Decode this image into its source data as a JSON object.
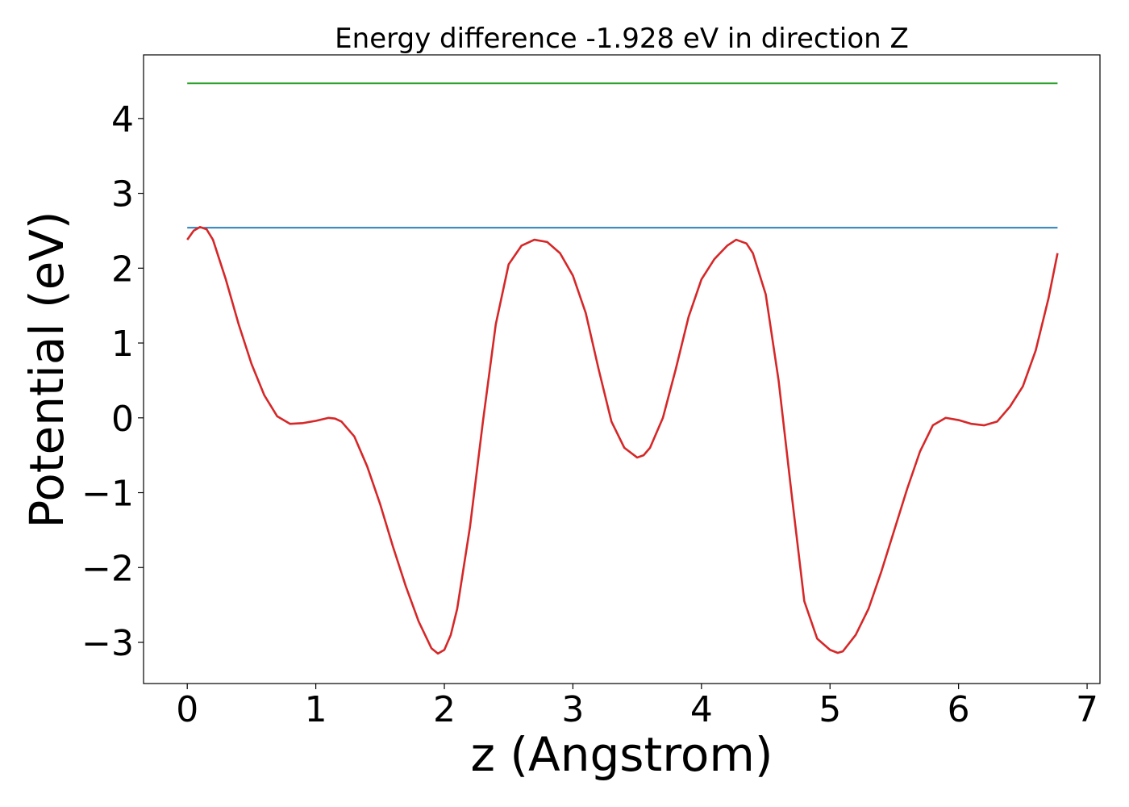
{
  "chart_data": {
    "type": "line",
    "title": "Energy difference -1.928 eV in direction Z",
    "xlabel": "z (Angstrom)",
    "ylabel": "Potential (eV)",
    "xlim": [
      -0.34,
      7.1
    ],
    "ylim": [
      -3.55,
      4.85
    ],
    "x_ticks": [
      0,
      1,
      2,
      3,
      4,
      5,
      6,
      7
    ],
    "x_tick_labels": [
      "0",
      "1",
      "2",
      "3",
      "4",
      "5",
      "6",
      "7"
    ],
    "y_ticks": [
      -3,
      -2,
      -1,
      0,
      1,
      2,
      3,
      4
    ],
    "y_tick_labels": [
      "−3",
      "−2",
      "−1",
      "0",
      "1",
      "2",
      "3",
      "4"
    ],
    "grid": false,
    "series": [
      {
        "color": "#d62728",
        "points": [
          [
            0.0,
            2.38
          ],
          [
            0.05,
            2.5
          ],
          [
            0.1,
            2.55
          ],
          [
            0.15,
            2.52
          ],
          [
            0.2,
            2.38
          ],
          [
            0.3,
            1.85
          ],
          [
            0.4,
            1.25
          ],
          [
            0.5,
            0.72
          ],
          [
            0.6,
            0.3
          ],
          [
            0.7,
            0.02
          ],
          [
            0.8,
            -0.08
          ],
          [
            0.9,
            -0.07
          ],
          [
            1.0,
            -0.04
          ],
          [
            1.1,
            0.0
          ],
          [
            1.15,
            -0.01
          ],
          [
            1.2,
            -0.05
          ],
          [
            1.3,
            -0.25
          ],
          [
            1.4,
            -0.65
          ],
          [
            1.5,
            -1.15
          ],
          [
            1.6,
            -1.72
          ],
          [
            1.7,
            -2.25
          ],
          [
            1.8,
            -2.72
          ],
          [
            1.9,
            -3.08
          ],
          [
            1.95,
            -3.15
          ],
          [
            2.0,
            -3.1
          ],
          [
            2.05,
            -2.9
          ],
          [
            2.1,
            -2.55
          ],
          [
            2.2,
            -1.45
          ],
          [
            2.3,
            -0.05
          ],
          [
            2.4,
            1.25
          ],
          [
            2.5,
            2.05
          ],
          [
            2.6,
            2.3
          ],
          [
            2.7,
            2.38
          ],
          [
            2.8,
            2.35
          ],
          [
            2.9,
            2.2
          ],
          [
            3.0,
            1.9
          ],
          [
            3.1,
            1.4
          ],
          [
            3.2,
            0.65
          ],
          [
            3.3,
            -0.05
          ],
          [
            3.4,
            -0.4
          ],
          [
            3.5,
            -0.53
          ],
          [
            3.55,
            -0.5
          ],
          [
            3.6,
            -0.4
          ],
          [
            3.7,
            0.0
          ],
          [
            3.8,
            0.65
          ],
          [
            3.9,
            1.35
          ],
          [
            4.0,
            1.85
          ],
          [
            4.1,
            2.12
          ],
          [
            4.2,
            2.3
          ],
          [
            4.27,
            2.38
          ],
          [
            4.35,
            2.33
          ],
          [
            4.4,
            2.2
          ],
          [
            4.5,
            1.65
          ],
          [
            4.6,
            0.5
          ],
          [
            4.7,
            -1.0
          ],
          [
            4.8,
            -2.45
          ],
          [
            4.9,
            -2.95
          ],
          [
            5.0,
            -3.1
          ],
          [
            5.06,
            -3.14
          ],
          [
            5.1,
            -3.12
          ],
          [
            5.2,
            -2.9
          ],
          [
            5.3,
            -2.55
          ],
          [
            5.4,
            -2.05
          ],
          [
            5.5,
            -1.5
          ],
          [
            5.6,
            -0.95
          ],
          [
            5.7,
            -0.45
          ],
          [
            5.8,
            -0.1
          ],
          [
            5.9,
            0.0
          ],
          [
            6.0,
            -0.03
          ],
          [
            6.1,
            -0.08
          ],
          [
            6.2,
            -0.1
          ],
          [
            6.3,
            -0.05
          ],
          [
            6.4,
            0.15
          ],
          [
            6.5,
            0.42
          ],
          [
            6.6,
            0.9
          ],
          [
            6.7,
            1.6
          ],
          [
            6.77,
            2.2
          ]
        ]
      },
      {
        "color": "#1f77b4",
        "points": [
          [
            0.0,
            2.54
          ],
          [
            6.77,
            2.54
          ]
        ]
      },
      {
        "color": "#2ca02c",
        "points": [
          [
            0.0,
            4.47
          ],
          [
            6.77,
            4.47
          ]
        ]
      }
    ]
  }
}
